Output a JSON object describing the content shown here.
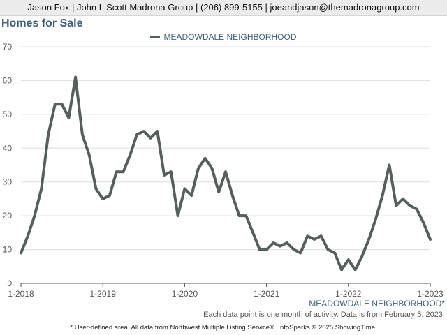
{
  "header": {
    "contact": "Jason Fox | John L Scott Madrona Group | (206) 899-5155 | joeandjason@themadronagroup.com"
  },
  "chart_data": {
    "type": "line",
    "title": "Homes for Sale",
    "xlabel": "",
    "ylabel": "",
    "ylim": [
      0,
      70
    ],
    "yticks": [
      0,
      10,
      20,
      30,
      40,
      50,
      60,
      70
    ],
    "xticks": [
      "1-2018",
      "1-2019",
      "1-2020",
      "1-2021",
      "1-2022",
      "1-2023"
    ],
    "grid": true,
    "legend_position": "top-center",
    "series": [
      {
        "name": "MEADOWDALE NEIGHBORHOOD",
        "color": "#555f5c",
        "x": [
          "1-2018",
          "2-2018",
          "3-2018",
          "4-2018",
          "5-2018",
          "6-2018",
          "7-2018",
          "8-2018",
          "9-2018",
          "10-2018",
          "11-2018",
          "12-2018",
          "1-2019",
          "2-2019",
          "3-2019",
          "4-2019",
          "5-2019",
          "6-2019",
          "7-2019",
          "8-2019",
          "9-2019",
          "10-2019",
          "11-2019",
          "12-2019",
          "1-2020",
          "2-2020",
          "3-2020",
          "4-2020",
          "5-2020",
          "6-2020",
          "7-2020",
          "8-2020",
          "9-2020",
          "10-2020",
          "11-2020",
          "12-2020",
          "1-2021",
          "2-2021",
          "3-2021",
          "4-2021",
          "5-2021",
          "6-2021",
          "7-2021",
          "8-2021",
          "9-2021",
          "10-2021",
          "11-2021",
          "12-2021",
          "1-2022",
          "2-2022",
          "3-2022",
          "4-2022",
          "5-2022",
          "6-2022",
          "7-2022",
          "8-2022",
          "9-2022",
          "10-2022",
          "11-2022",
          "12-2022",
          "1-2023"
        ],
        "values": [
          9,
          14,
          20,
          28,
          44,
          53,
          53,
          49,
          61,
          44,
          38,
          28,
          25,
          26,
          33,
          33,
          38,
          44,
          45,
          43,
          45,
          32,
          33,
          20,
          28,
          26,
          34,
          37,
          34,
          27,
          33,
          26,
          20,
          20,
          15,
          10,
          10,
          12,
          11,
          12,
          10,
          9,
          14,
          13,
          14,
          10,
          9,
          4,
          7,
          4,
          8,
          13,
          19,
          26,
          35,
          23,
          25,
          23,
          22,
          18,
          13
        ]
      }
    ]
  },
  "footer": {
    "series_label": "MEADOWDALE NEIGHBORHOOD*",
    "note": "Each data point is one month of activity. Data is from February 5, 2023.",
    "source": "* User-defined area. All data from Northwest Multiple Listing Service®. InfoSparks © 2025 ShowingTime."
  }
}
